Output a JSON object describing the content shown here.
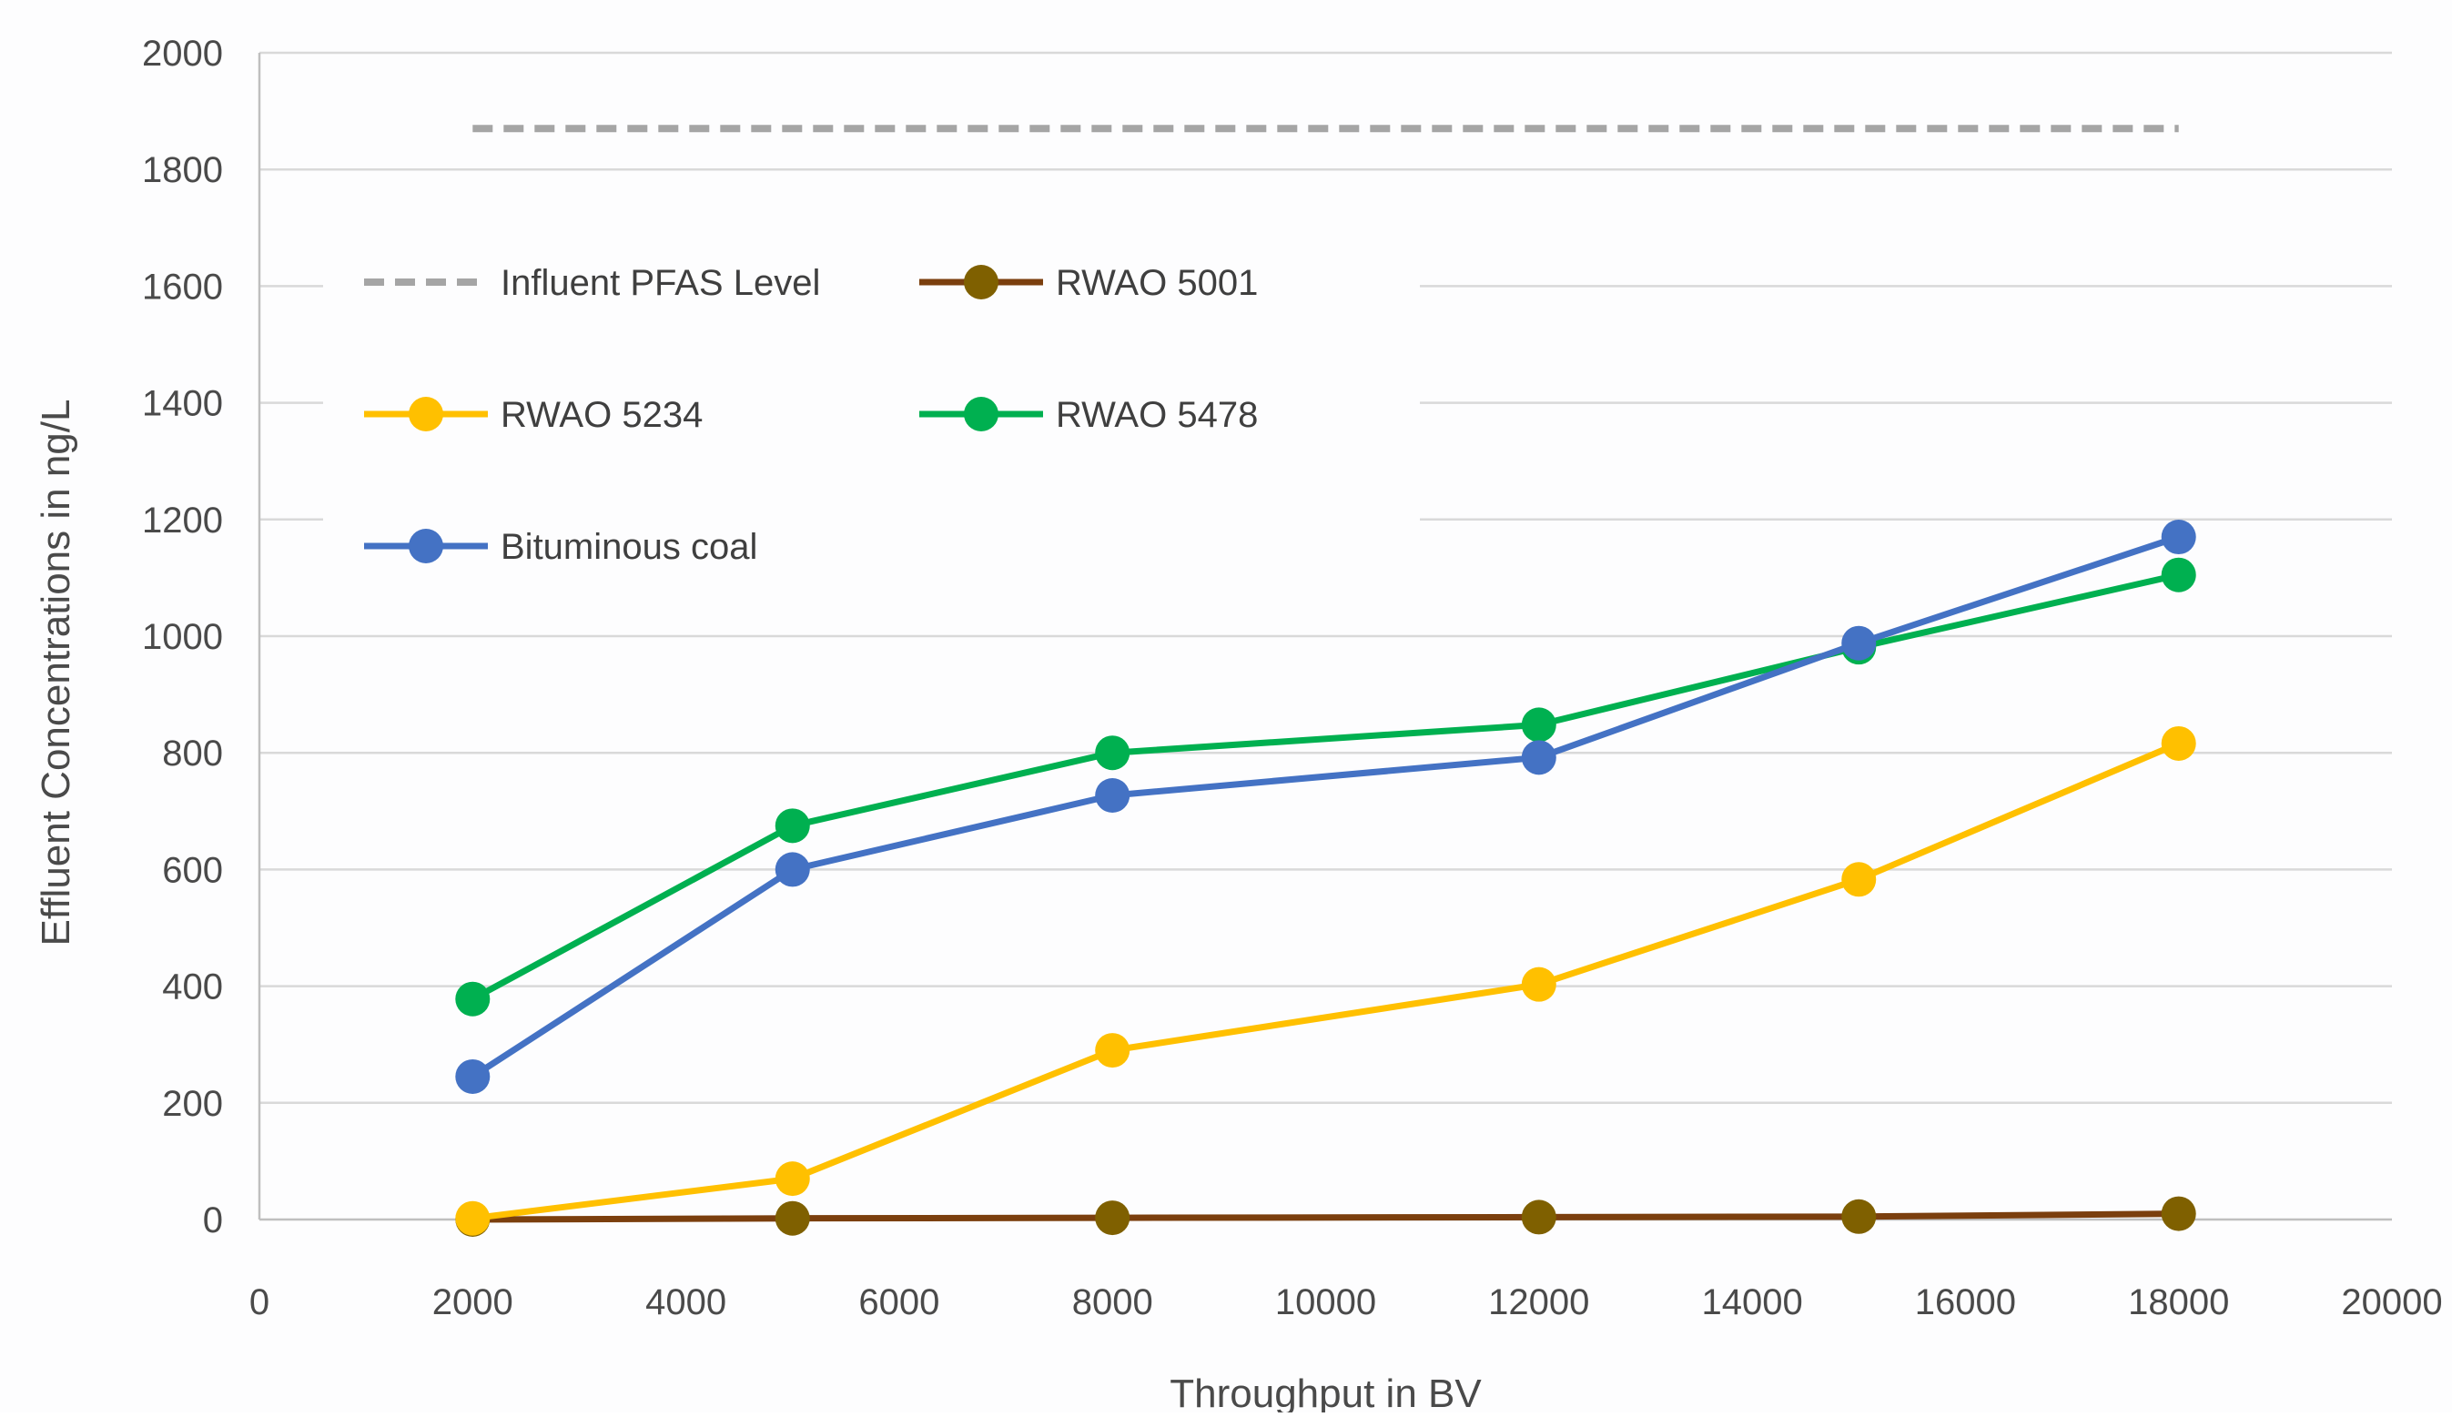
{
  "chart_data": {
    "type": "line",
    "title": "",
    "xlabel": "Throughput in BV",
    "ylabel": "Effluent Concentrations in ng/L",
    "xlim": [
      0,
      20000
    ],
    "ylim": [
      0,
      2000
    ],
    "xticks": [
      0,
      2000,
      4000,
      6000,
      8000,
      10000,
      12000,
      14000,
      16000,
      18000,
      20000
    ],
    "yticks": [
      0,
      200,
      400,
      600,
      800,
      1000,
      1200,
      1400,
      1600,
      1800,
      2000
    ],
    "grid": "horizontal",
    "legend_position": "upper-left",
    "series": [
      {
        "name": "Influent PFAS Level",
        "color": "#A5A5A5",
        "style": "dashed",
        "markers": false,
        "x": [
          2000,
          18000
        ],
        "y": [
          1870,
          1870
        ]
      },
      {
        "name": "RWAO 5001",
        "color": "#7B3F0E",
        "marker_color": "#7F6000",
        "style": "solid",
        "markers": true,
        "x": [
          2000,
          5000,
          8000,
          12000,
          15000,
          18000
        ],
        "y": [
          0,
          2,
          3,
          4,
          5,
          10
        ]
      },
      {
        "name": "RWAO 5234",
        "color": "#FFC000",
        "style": "solid",
        "markers": true,
        "x": [
          2000,
          5000,
          8000,
          12000,
          15000,
          18000
        ],
        "y": [
          2,
          70,
          290,
          403,
          583,
          816
        ]
      },
      {
        "name": "RWAO 5478",
        "color": "#00B050",
        "style": "solid",
        "markers": true,
        "x": [
          2000,
          5000,
          8000,
          12000,
          15000,
          18000
        ],
        "y": [
          378,
          675,
          800,
          848,
          981,
          1105
        ]
      },
      {
        "name": "Bituminous coal",
        "color": "#4472C4",
        "style": "solid",
        "markers": true,
        "x": [
          2000,
          5000,
          8000,
          12000,
          15000,
          18000
        ],
        "y": [
          245,
          600,
          727,
          792,
          988,
          1170
        ]
      }
    ]
  }
}
